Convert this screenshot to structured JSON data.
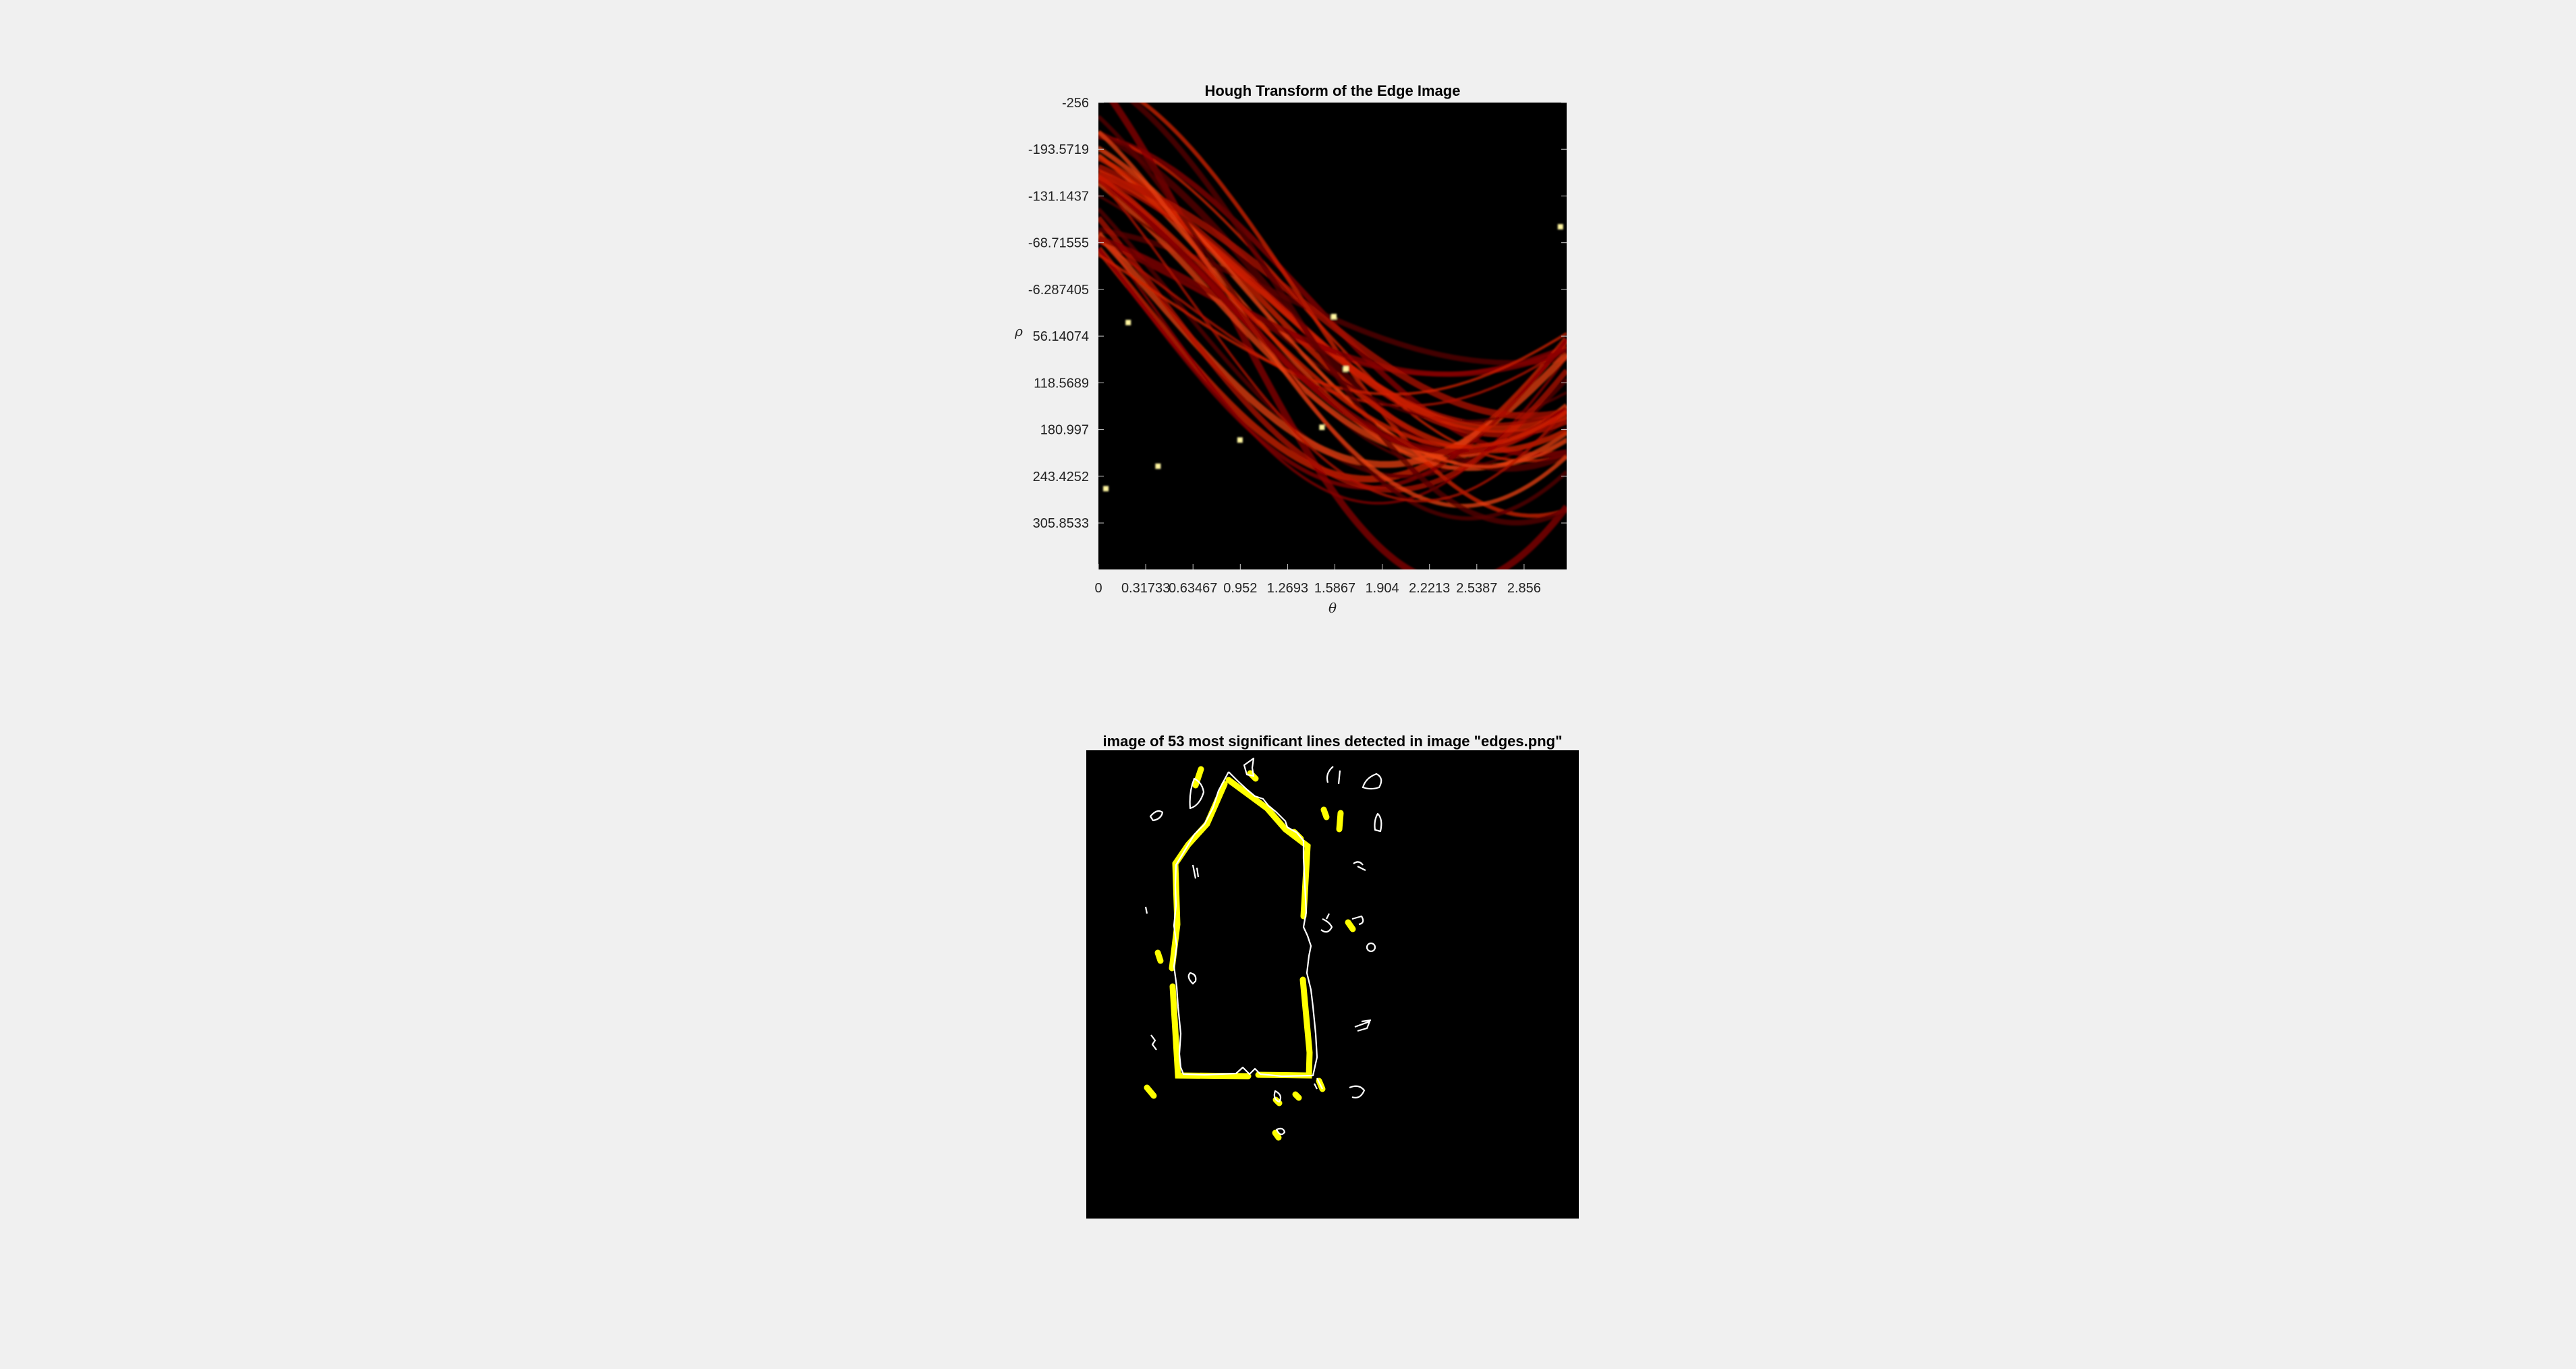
{
  "chart_data": [
    {
      "type": "heatmap",
      "title": "Hough Transform of the Edge Image",
      "xlabel": "θ",
      "ylabel": "ρ",
      "xticks": [
        "0",
        "0.31733",
        "0.63467",
        "0.952",
        "1.2693",
        "1.5867",
        "1.904",
        "2.2213",
        "2.5387",
        "2.856"
      ],
      "xtick_values": [
        0,
        0.31733,
        0.63467,
        0.952,
        1.2693,
        1.5867,
        1.904,
        2.2213,
        2.5387,
        2.856
      ],
      "yticks": [
        "-256",
        "-193.5719",
        "-131.1437",
        "-68.71555",
        "-6.287405",
        "56.14074",
        "118.5689",
        "180.997",
        "243.4252",
        "305.8533"
      ],
      "ytick_values": [
        -256,
        -193.5719,
        -131.1437,
        -68.71555,
        -6.287405,
        56.14074,
        118.5689,
        180.997,
        243.4252,
        305.8533
      ],
      "xlim": [
        0,
        3.1416
      ],
      "ylim": [
        -256,
        368
      ],
      "colormap": "hot",
      "background": "#000000",
      "grid": false
    },
    {
      "type": "image",
      "title": "image of 53 most significant lines detected in image \"edges.png\"",
      "background": "#000000",
      "edge_color": "#ffffff",
      "line_color": "#ffff00",
      "detected_line_count": 53
    }
  ]
}
